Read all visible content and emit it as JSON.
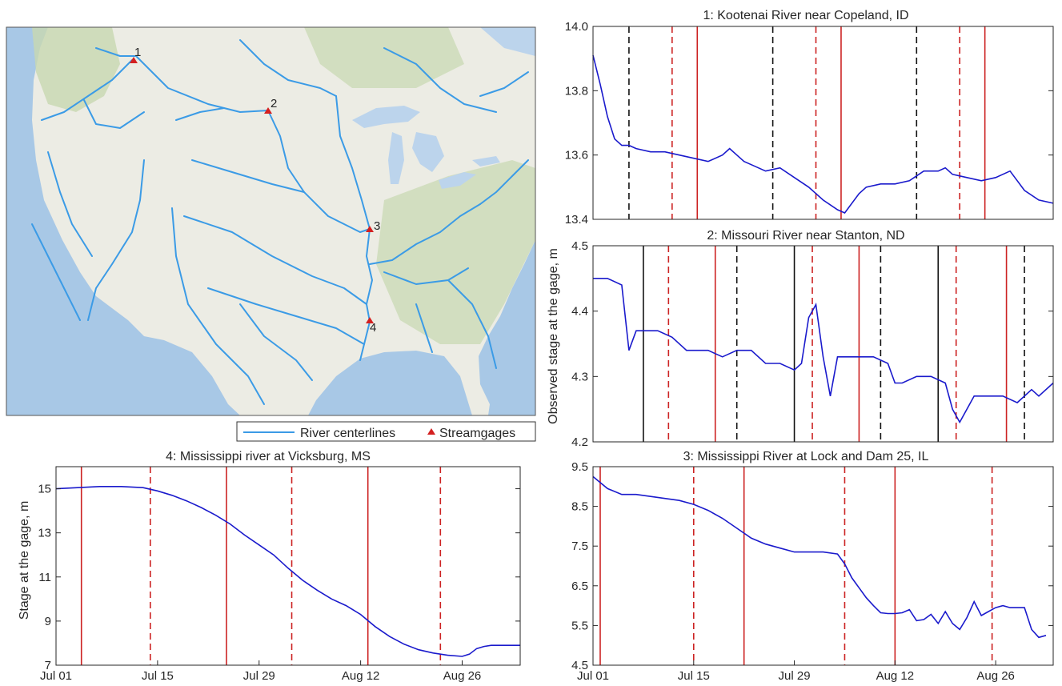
{
  "colors": {
    "series": "#1a1acc",
    "vline_red": "#cc2222",
    "vline_black": "#111111",
    "river": "#3b9be6",
    "gage": "#d42020",
    "ocean": "#a8c8e6",
    "land": "#ecece4",
    "lake": "#bcd4ec",
    "vegetation": "#c8d8b0"
  },
  "map": {
    "gages": [
      {
        "label": "1"
      },
      {
        "label": "2"
      },
      {
        "label": "3"
      },
      {
        "label": "4"
      }
    ]
  },
  "legend": {
    "river_label": "River centerlines",
    "gage_label": "Streamgages"
  },
  "chart_data": [
    {
      "type": "line",
      "title": "1: Kootenai River near Copeland, ID",
      "xlabel": "",
      "ylabel": "",
      "xlim": [
        1,
        65
      ],
      "ylim": [
        13.4,
        14.0
      ],
      "yticks": [
        13.4,
        13.6,
        13.8,
        14.0
      ],
      "yticklabels": [
        "13.4",
        "13.6",
        "13.8",
        "14.0"
      ],
      "xticks": [],
      "xticklabels": [],
      "x": [
        1,
        2,
        3,
        4,
        5,
        6,
        7,
        9,
        11,
        13,
        15,
        17,
        19,
        20,
        21,
        22,
        23,
        25,
        27,
        29,
        31,
        33,
        35,
        36,
        38,
        39,
        41,
        43,
        45,
        47,
        49,
        50,
        51,
        53,
        55,
        57,
        59,
        61,
        63,
        65
      ],
      "y": [
        13.91,
        13.82,
        13.72,
        13.65,
        13.63,
        13.63,
        13.62,
        13.61,
        13.61,
        13.6,
        13.59,
        13.58,
        13.6,
        13.62,
        13.6,
        13.58,
        13.57,
        13.55,
        13.56,
        13.53,
        13.5,
        13.46,
        13.43,
        13.42,
        13.48,
        13.5,
        13.51,
        13.51,
        13.52,
        13.55,
        13.55,
        13.56,
        13.54,
        13.53,
        13.52,
        13.53,
        13.55,
        13.49,
        13.46,
        13.45
      ],
      "vlines_black_dashed": [
        6,
        26,
        46
      ],
      "vlines_red_dashed": [
        12,
        32,
        52
      ],
      "vlines_red_solid": [
        15.5,
        35.5,
        55.5
      ],
      "vlines_black_solid": []
    },
    {
      "type": "line",
      "title": "2: Missouri River near Stanton, ND",
      "xlabel": "",
      "ylabel": "Observed stage at the gage, m",
      "xlim": [
        1,
        65
      ],
      "ylim": [
        4.2,
        4.5
      ],
      "yticks": [
        4.2,
        4.3,
        4.4,
        4.5
      ],
      "yticklabels": [
        "4.2",
        "4.3",
        "4.4",
        "4.5"
      ],
      "xticks": [],
      "xticklabels": [],
      "x": [
        1,
        3,
        5,
        6,
        7,
        8,
        10,
        12,
        14,
        15,
        17,
        19,
        21,
        23,
        25,
        27,
        29,
        30,
        31,
        32,
        33,
        34,
        35,
        36,
        38,
        40,
        42,
        43,
        44,
        46,
        48,
        50,
        51,
        52,
        54,
        56,
        58,
        60,
        62,
        63,
        65
      ],
      "y": [
        4.45,
        4.45,
        4.44,
        4.34,
        4.37,
        4.37,
        4.37,
        4.36,
        4.34,
        4.34,
        4.34,
        4.33,
        4.34,
        4.34,
        4.32,
        4.32,
        4.31,
        4.32,
        4.39,
        4.41,
        4.33,
        4.27,
        4.33,
        4.33,
        4.33,
        4.33,
        4.32,
        4.29,
        4.29,
        4.3,
        4.3,
        4.29,
        4.25,
        4.23,
        4.27,
        4.27,
        4.27,
        4.26,
        4.28,
        4.27,
        4.29
      ],
      "vlines_black_solid": [
        8,
        29,
        49
      ],
      "vlines_red_dashed": [
        11.5,
        31.5,
        51.5
      ],
      "vlines_red_solid": [
        18,
        38,
        58.5
      ],
      "vlines_black_dashed": [
        21,
        41,
        61
      ]
    },
    {
      "type": "line",
      "title": "3: Mississippi River at Lock and Dam 25, IL",
      "xlabel": "",
      "ylabel": "",
      "xlim": [
        1,
        65
      ],
      "ylim": [
        4.5,
        9.5
      ],
      "yticks": [
        4.5,
        5.5,
        6.5,
        7.5,
        8.5,
        9.5
      ],
      "yticklabels": [
        "4.5",
        "5.5",
        "6.5",
        "7.5",
        "8.5",
        "9.5"
      ],
      "xticks": [
        1,
        15,
        29,
        43,
        57
      ],
      "xticklabels": [
        "Jul 01",
        "Jul 15",
        "Jul 29",
        "Aug 12",
        "Aug 26"
      ],
      "x": [
        1,
        3,
        5,
        7,
        9,
        11,
        13,
        15,
        17,
        19,
        21,
        23,
        25,
        27,
        29,
        31,
        33,
        35,
        36,
        37,
        38,
        39,
        40,
        41,
        42,
        43,
        44,
        45,
        46,
        47,
        48,
        49,
        50,
        51,
        52,
        53,
        54,
        55,
        56,
        57,
        58,
        59,
        60,
        61,
        62,
        63,
        64
      ],
      "y": [
        9.25,
        8.95,
        8.8,
        8.8,
        8.75,
        8.7,
        8.65,
        8.55,
        8.4,
        8.2,
        7.95,
        7.7,
        7.55,
        7.45,
        7.35,
        7.35,
        7.35,
        7.3,
        7.05,
        6.7,
        6.45,
        6.2,
        6.0,
        5.82,
        5.8,
        5.8,
        5.82,
        5.9,
        5.62,
        5.65,
        5.78,
        5.55,
        5.85,
        5.55,
        5.4,
        5.7,
        6.1,
        5.75,
        5.85,
        5.95,
        6.0,
        5.95,
        5.95,
        5.95,
        5.4,
        5.2,
        5.25
      ],
      "vlines_red_solid": [
        2,
        22,
        43
      ],
      "vlines_red_dashed": [
        15,
        36,
        56.5
      ],
      "vlines_black_dashed": [],
      "vlines_black_solid": []
    },
    {
      "type": "line",
      "title": "4: Mississippi river at Vicksburg, MS",
      "xlabel": "",
      "ylabel": "Stage at the gage, m",
      "xlim": [
        1,
        65
      ],
      "ylim": [
        7,
        16
      ],
      "yticks": [
        7,
        9,
        11,
        13,
        15
      ],
      "yticklabels": [
        "7",
        "9",
        "11",
        "13",
        "15"
      ],
      "xticks": [
        1,
        15,
        29,
        43,
        57
      ],
      "xticklabels": [
        "Jul 01",
        "Jul 15",
        "Jul 29",
        "Aug 12",
        "Aug 26"
      ],
      "x": [
        1,
        4,
        7,
        10,
        13,
        15,
        17,
        19,
        21,
        23,
        25,
        27,
        29,
        31,
        33,
        35,
        37,
        39,
        41,
        43,
        45,
        47,
        49,
        51,
        53,
        55,
        57,
        58,
        59,
        60,
        61,
        63,
        65
      ],
      "y": [
        15.0,
        15.05,
        15.1,
        15.1,
        15.05,
        14.9,
        14.7,
        14.45,
        14.15,
        13.8,
        13.4,
        12.9,
        12.45,
        12.0,
        11.4,
        10.85,
        10.4,
        10.0,
        9.7,
        9.3,
        8.75,
        8.3,
        7.95,
        7.7,
        7.55,
        7.45,
        7.4,
        7.5,
        7.75,
        7.85,
        7.9,
        7.9,
        7.9
      ],
      "vlines_red_solid": [
        4.5,
        24.5,
        44
      ],
      "vlines_red_dashed": [
        14,
        33.5,
        54
      ],
      "vlines_black_dashed": [],
      "vlines_black_solid": []
    }
  ]
}
